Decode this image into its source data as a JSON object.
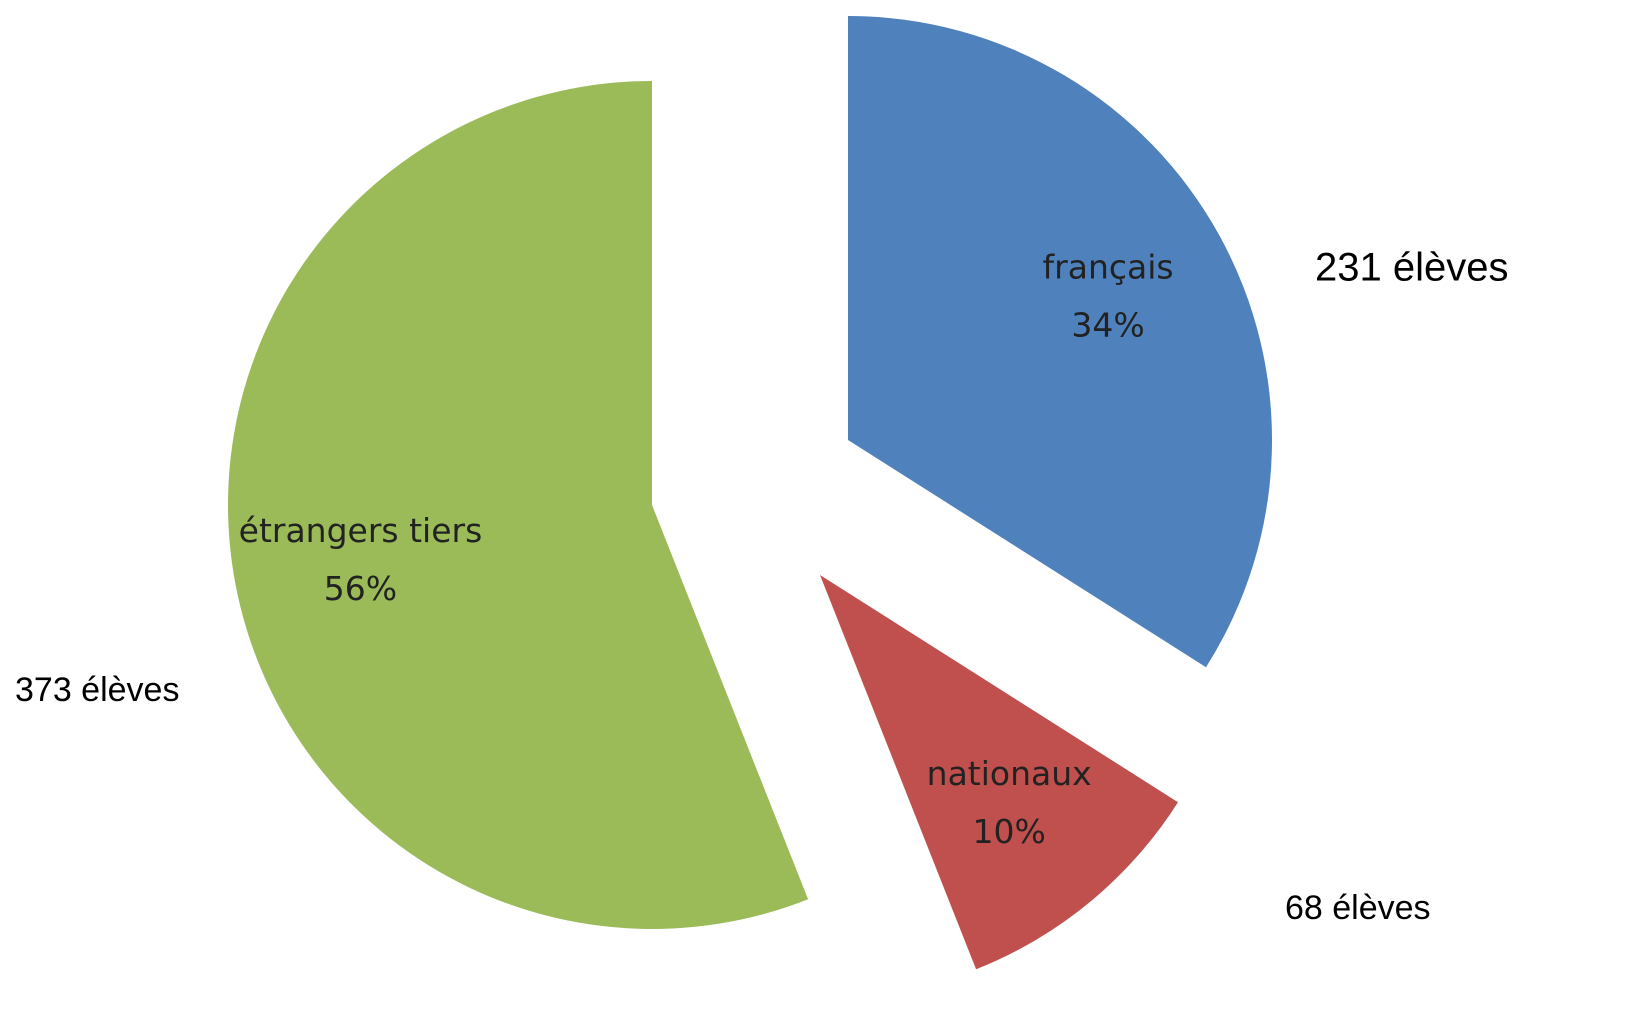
{
  "chart_data": {
    "type": "pie",
    "categories": [
      "français",
      "nationaux",
      "étrangers tiers"
    ],
    "values": [
      34,
      10,
      56
    ],
    "value_labels": [
      "34%",
      "10%",
      "56%"
    ],
    "colors": [
      "#4f81bd",
      "#c0504d",
      "#9bbb59"
    ],
    "annotations": [
      "231 élèves",
      "68 élèves",
      "373 élèves"
    ]
  }
}
